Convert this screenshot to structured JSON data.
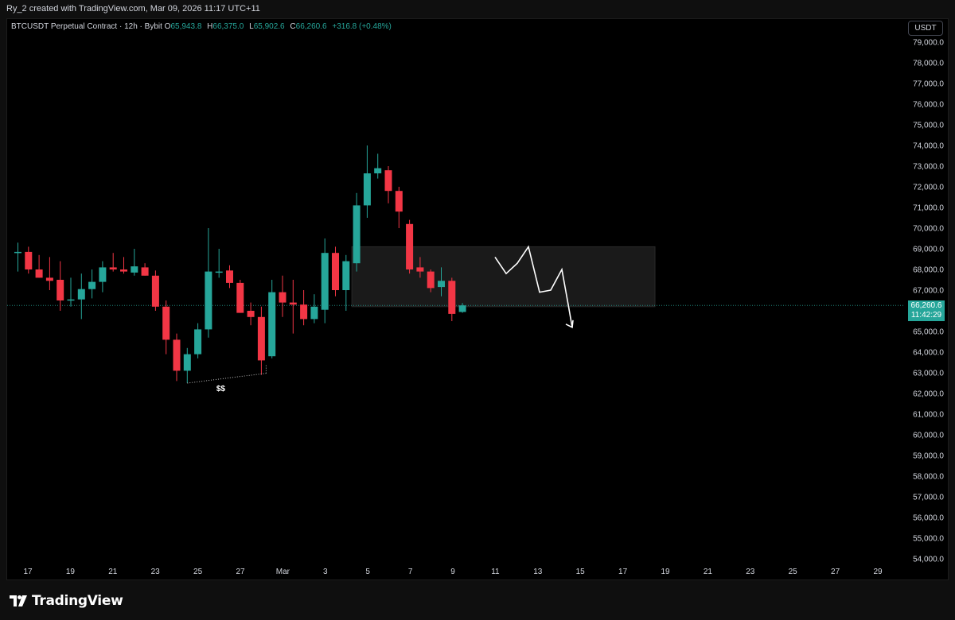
{
  "header": {
    "attribution": "Ry_2 created with TradingView.com, Mar 09, 2026 11:17 UTC+11"
  },
  "legend": {
    "symbol": "BTCUSDT Perpetual Contract · 12h · Bybit",
    "open_label": "O",
    "open_value": "65,943.8",
    "high_label": "H",
    "high_value": "66,375.0",
    "low_label": "L",
    "low_value": "65,902.6",
    "close_label": "C",
    "close_value": "66,260.6",
    "change": "+316.8 (+0.48%)"
  },
  "price_scale": {
    "currency": "USDT",
    "last_price": "66,260.6",
    "countdown": "11:42:29"
  },
  "annotation": {
    "liquidity_label": "$$"
  },
  "brand": {
    "name": "TradingView"
  },
  "colors": {
    "up": "#26a69a",
    "down": "#f23645",
    "background": "#000000",
    "zone": "#1e1e1e",
    "text": "#d1d4dc"
  },
  "chart_data": {
    "type": "candlestick",
    "timeframe": "12h",
    "ylim": [
      54000,
      79000
    ],
    "y_ticks": [
      "79,000.0",
      "78,000.0",
      "77,000.0",
      "76,000.0",
      "75,000.0",
      "74,000.0",
      "73,000.0",
      "72,000.0",
      "71,000.0",
      "70,000.0",
      "69,000.0",
      "68,000.0",
      "67,000.0",
      "66,000.0",
      "65,000.0",
      "64,000.0",
      "63,000.0",
      "62,000.0",
      "61,000.0",
      "60,000.0",
      "59,000.0",
      "58,000.0",
      "57,000.0",
      "56,000.0",
      "55,000.0",
      "54,000.0"
    ],
    "x_ticks": [
      "17",
      "19",
      "21",
      "23",
      "25",
      "27",
      "Mar",
      "3",
      "5",
      "7",
      "9",
      "11",
      "13",
      "15",
      "17",
      "19",
      "21",
      "23",
      "25",
      "27",
      "29"
    ],
    "candles": [
      {
        "o": 68800,
        "h": 69300,
        "l": 67900,
        "c": 68850
      },
      {
        "o": 68850,
        "h": 69100,
        "l": 67800,
        "c": 68000
      },
      {
        "o": 68000,
        "h": 68700,
        "l": 67600,
        "c": 67600
      },
      {
        "o": 67600,
        "h": 68600,
        "l": 67000,
        "c": 67450
      },
      {
        "o": 67500,
        "h": 68400,
        "l": 66000,
        "c": 66500
      },
      {
        "o": 66500,
        "h": 67600,
        "l": 66200,
        "c": 66550
      },
      {
        "o": 66550,
        "h": 67800,
        "l": 65600,
        "c": 67050
      },
      {
        "o": 67050,
        "h": 68000,
        "l": 66600,
        "c": 67400
      },
      {
        "o": 67400,
        "h": 68400,
        "l": 66900,
        "c": 68100
      },
      {
        "o": 68100,
        "h": 68800,
        "l": 67900,
        "c": 68000
      },
      {
        "o": 68000,
        "h": 68600,
        "l": 67800,
        "c": 67900
      },
      {
        "o": 67850,
        "h": 69000,
        "l": 67700,
        "c": 68150
      },
      {
        "o": 68100,
        "h": 68300,
        "l": 67700,
        "c": 67700
      },
      {
        "o": 67700,
        "h": 67950,
        "l": 66000,
        "c": 66200
      },
      {
        "o": 66200,
        "h": 66500,
        "l": 63900,
        "c": 64600
      },
      {
        "o": 64600,
        "h": 64900,
        "l": 62600,
        "c": 63100
      },
      {
        "o": 63100,
        "h": 64200,
        "l": 62500,
        "c": 63900
      },
      {
        "o": 63900,
        "h": 65400,
        "l": 63700,
        "c": 65100
      },
      {
        "o": 65100,
        "h": 70000,
        "l": 64700,
        "c": 67900
      },
      {
        "o": 67900,
        "h": 69000,
        "l": 67600,
        "c": 67900
      },
      {
        "o": 67950,
        "h": 68200,
        "l": 67100,
        "c": 67350
      },
      {
        "o": 67350,
        "h": 67500,
        "l": 65900,
        "c": 65900
      },
      {
        "o": 66000,
        "h": 66400,
        "l": 65300,
        "c": 65700
      },
      {
        "o": 65700,
        "h": 66200,
        "l": 62900,
        "c": 63600
      },
      {
        "o": 63800,
        "h": 67500,
        "l": 63700,
        "c": 66900
      },
      {
        "o": 66900,
        "h": 67700,
        "l": 65700,
        "c": 66400
      },
      {
        "o": 66400,
        "h": 67500,
        "l": 64900,
        "c": 66300
      },
      {
        "o": 66300,
        "h": 67000,
        "l": 65300,
        "c": 65600
      },
      {
        "o": 65600,
        "h": 66800,
        "l": 65400,
        "c": 66200
      },
      {
        "o": 66050,
        "h": 69500,
        "l": 65400,
        "c": 68800
      },
      {
        "o": 68800,
        "h": 69100,
        "l": 66700,
        "c": 67000
      },
      {
        "o": 67000,
        "h": 68700,
        "l": 66000,
        "c": 68400
      },
      {
        "o": 68300,
        "h": 71700,
        "l": 67900,
        "c": 71100
      },
      {
        "o": 71100,
        "h": 74000,
        "l": 70500,
        "c": 72650
      },
      {
        "o": 72650,
        "h": 73600,
        "l": 72400,
        "c": 72900
      },
      {
        "o": 72800,
        "h": 73000,
        "l": 71200,
        "c": 71800
      },
      {
        "o": 71800,
        "h": 72000,
        "l": 70000,
        "c": 70800
      },
      {
        "o": 70200,
        "h": 70400,
        "l": 67800,
        "c": 68000
      },
      {
        "o": 68100,
        "h": 68600,
        "l": 67600,
        "c": 67900
      },
      {
        "o": 67900,
        "h": 68000,
        "l": 66900,
        "c": 67100
      },
      {
        "o": 67150,
        "h": 68100,
        "l": 66700,
        "c": 67450
      },
      {
        "o": 67450,
        "h": 67600,
        "l": 65500,
        "c": 65850
      },
      {
        "o": 65943.8,
        "h": 66375.0,
        "l": 65902.6,
        "c": 66260.6
      }
    ],
    "zone": {
      "from_price": 66200,
      "to_price": 69100
    },
    "projection": [
      68600,
      67800,
      68300,
      69100,
      66900,
      67000,
      68000,
      66300,
      65200
    ]
  }
}
